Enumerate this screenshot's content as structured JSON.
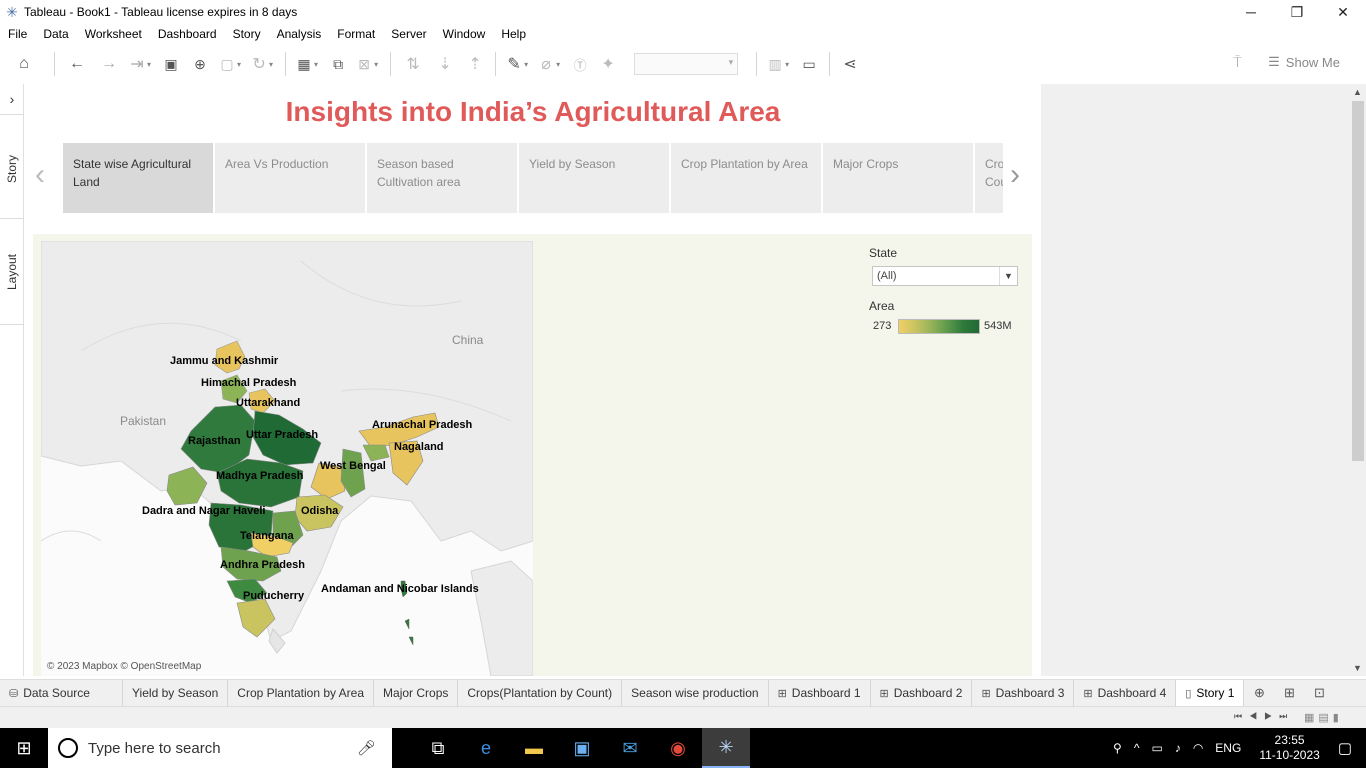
{
  "window": {
    "title": "Tableau - Book1 - Tableau license expires in 8 days",
    "controls": [
      "─",
      "❐",
      "✕"
    ]
  },
  "menu": [
    "File",
    "Data",
    "Worksheet",
    "Dashboard",
    "Story",
    "Analysis",
    "Format",
    "Server",
    "Window",
    "Help"
  ],
  "toolbar": {
    "show_me_label": "Show Me"
  },
  "left_tabs": {
    "story": "Story",
    "layout": "Layout",
    "expand": "›"
  },
  "story": {
    "title": "Insights into India’s Agricultural Area",
    "points": [
      {
        "label": "State  wise Agricultural Land",
        "active": true
      },
      {
        "label": "Area Vs Production",
        "active": false
      },
      {
        "label": "Season based Cultivation area",
        "active": false
      },
      {
        "label": "Yield by Season",
        "active": false
      },
      {
        "label": "Crop Plantation by Area",
        "active": false
      },
      {
        "label": "Major Crops",
        "active": false
      },
      {
        "label": "Crops(Plantation by Count)",
        "active": false
      }
    ]
  },
  "map": {
    "attribution": "© 2023 Mapbox © OpenStreetMap",
    "country_labels": {
      "china": "China",
      "pakistan": "Pakistan"
    },
    "state_labels": {
      "jk": "Jammu and Kashmir",
      "hp": "Himachal Pradesh",
      "uk": "Uttarakhand",
      "ar": "Arunachal Pradesh",
      "rj": "Rajasthan",
      "up": "Uttar Pradesh",
      "nl": "Nagaland",
      "wb": "West Bengal",
      "mp": "Madhya Pradesh",
      "dn": "Dadra and Nagar Haveli",
      "od": "Odisha",
      "tg": "Telangana",
      "ap": "Andhra Pradesh",
      "an": "Andaman and Nicobar Islands",
      "py": "Puducherry"
    }
  },
  "filter": {
    "label": "State",
    "value": "(All)"
  },
  "legend": {
    "label": "Area",
    "min": "273",
    "max": "543M"
  },
  "sheet_tabs": [
    {
      "label": "Data Source",
      "icon": "db",
      "active": false
    },
    {
      "label": "Yield by Season",
      "icon": "",
      "active": false
    },
    {
      "label": "Crop Plantation by Area",
      "icon": "",
      "active": false
    },
    {
      "label": "Major Crops",
      "icon": "",
      "active": false
    },
    {
      "label": "Crops(Plantation by Count)",
      "icon": "",
      "active": false
    },
    {
      "label": "Season wise production",
      "icon": "",
      "active": false
    },
    {
      "label": "Dashboard 1",
      "icon": "dash",
      "active": false
    },
    {
      "label": "Dashboard 2",
      "icon": "dash",
      "active": false
    },
    {
      "label": "Dashboard 3",
      "icon": "dash",
      "active": false
    },
    {
      "label": "Dashboard 4",
      "icon": "dash",
      "active": false
    },
    {
      "label": "Story 1",
      "icon": "story",
      "active": true
    }
  ],
  "taskbar": {
    "search_placeholder": "Type here to search",
    "language": "ENG",
    "time": "23:55",
    "date": "11-10-2023"
  },
  "colors": {
    "title_red": "#e05a5a",
    "area_low": "#f0cf65",
    "area_high": "#1f6a35"
  }
}
